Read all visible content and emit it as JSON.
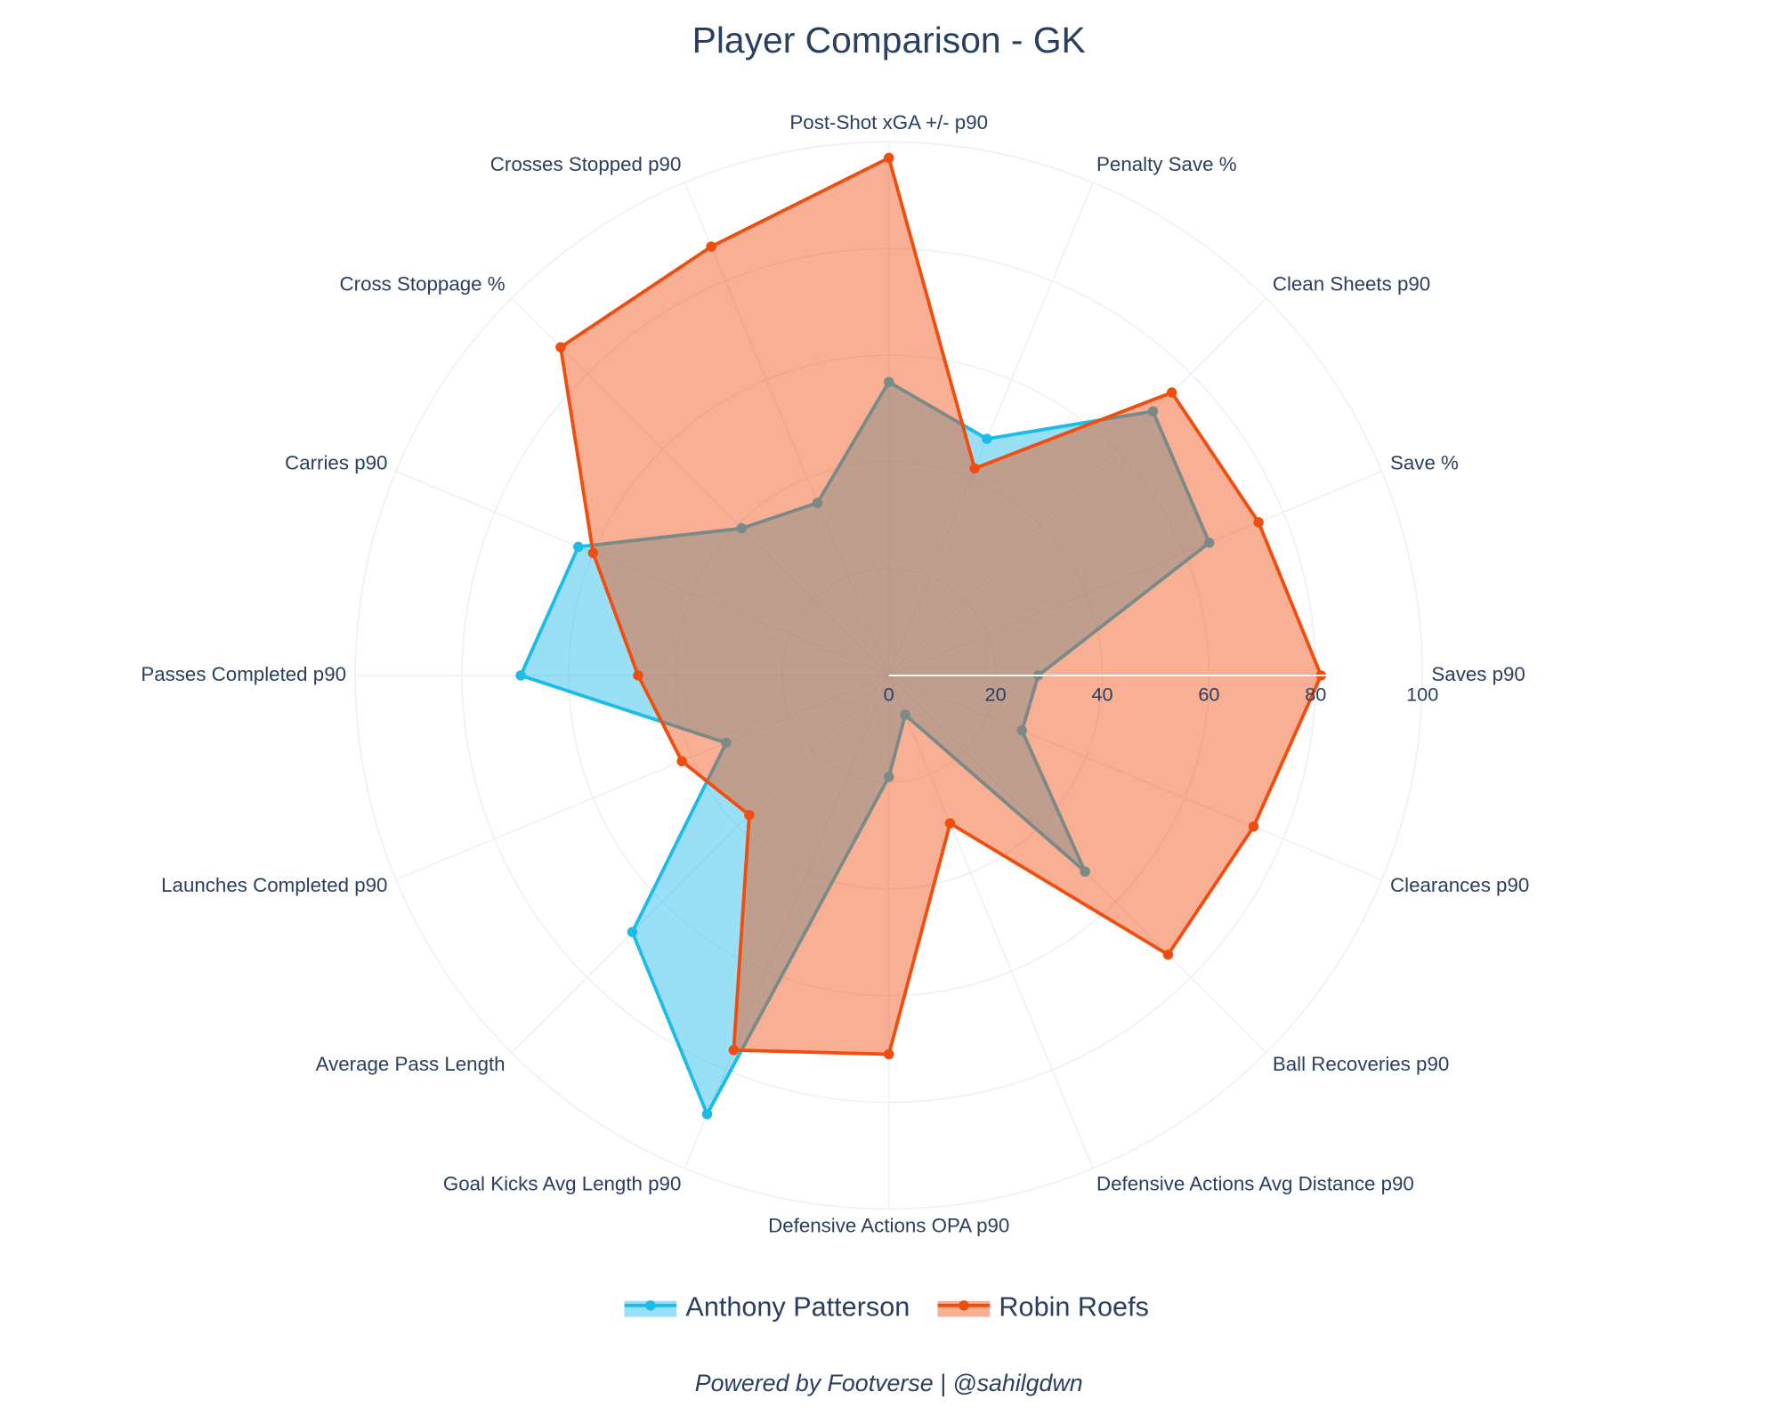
{
  "chart_data": {
    "type": "radar",
    "title": "Player Comparison - GK",
    "categories": [
      "Saves p90",
      "Save %",
      "Clean Sheets p90",
      "Penalty Save %",
      "Post-Shot xGA +/- p90",
      "Crosses Stopped p90",
      "Cross Stoppage %",
      "Carries p90",
      "Passes Completed p90",
      "Launches Completed p90",
      "Average Pass Length",
      "Goal Kicks Avg Length p90",
      "Defensive Actions OPA p90",
      "Defensive Actions Avg Distance p90",
      "Ball Recoveries p90",
      "Clearances p90"
    ],
    "series": [
      {
        "name": "Anthony Patterson",
        "color": "#1cbbea",
        "values": [
          28,
          65,
          70,
          48,
          55,
          35,
          39,
          63,
          69,
          33,
          68,
          89,
          19,
          8,
          52,
          27
        ]
      },
      {
        "name": "Robin Roefs",
        "color": "#f04e10",
        "values": [
          81,
          75,
          75,
          42,
          97,
          87,
          87,
          60,
          47,
          42,
          37,
          76,
          71,
          30,
          74,
          74
        ]
      }
    ],
    "rlim": [
      0,
      100
    ],
    "rticks": [
      0,
      20,
      40,
      60,
      80,
      100
    ],
    "grid": true,
    "legend": "bottom",
    "footer": "Powered by Footverse | @sahilgdwn"
  }
}
